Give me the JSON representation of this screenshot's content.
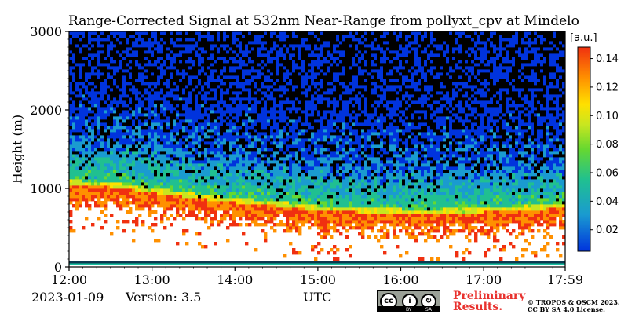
{
  "chart_data": {
    "type": "heatmap",
    "title": "Range-Corrected Signal at 532nm Near-Range from pollyxt_cpv at Mindelo",
    "ylabel": "Height (m)",
    "xlabel": "UTC",
    "ylim": [
      0,
      3000
    ],
    "xlim": [
      "12:00",
      "17:59"
    ],
    "x_ticks": [
      "12:00",
      "13:00",
      "14:00",
      "15:00",
      "16:00",
      "17:00",
      "17:59"
    ],
    "y_ticks": [
      "0",
      "1000",
      "2000",
      "3000"
    ],
    "colorbar": {
      "label": "[a.u.]",
      "range": [
        0.005,
        0.148
      ],
      "ticks": [
        "0.02",
        "0.04",
        "0.06",
        "0.08",
        "0.10",
        "0.12",
        "0.14"
      ],
      "colormap": [
        "#0033dd",
        "#1a9bd0",
        "#20c090",
        "#66d830",
        "#c8e620",
        "#ffe000",
        "#ff9000",
        "#f03010"
      ]
    },
    "cloud_base_profile": {
      "hours_utc": [
        12.0,
        12.5,
        13.0,
        13.5,
        14.0,
        14.5,
        15.0,
        15.5,
        16.0,
        16.5,
        17.0,
        17.5,
        17.98
      ],
      "layer_top_m": [
        1050,
        1020,
        950,
        880,
        820,
        780,
        720,
        700,
        680,
        680,
        700,
        720,
        760
      ]
    },
    "date": "2023-01-09",
    "version": "Version: 3.5"
  },
  "footer": {
    "preliminary": "Preliminary Results.",
    "copyright": "© TROPOS & OSCM 2023.",
    "license": "CC BY SA 4.0 License.",
    "cc_badge": {
      "cc": "cc",
      "by": "BY",
      "sa": "SA"
    }
  }
}
